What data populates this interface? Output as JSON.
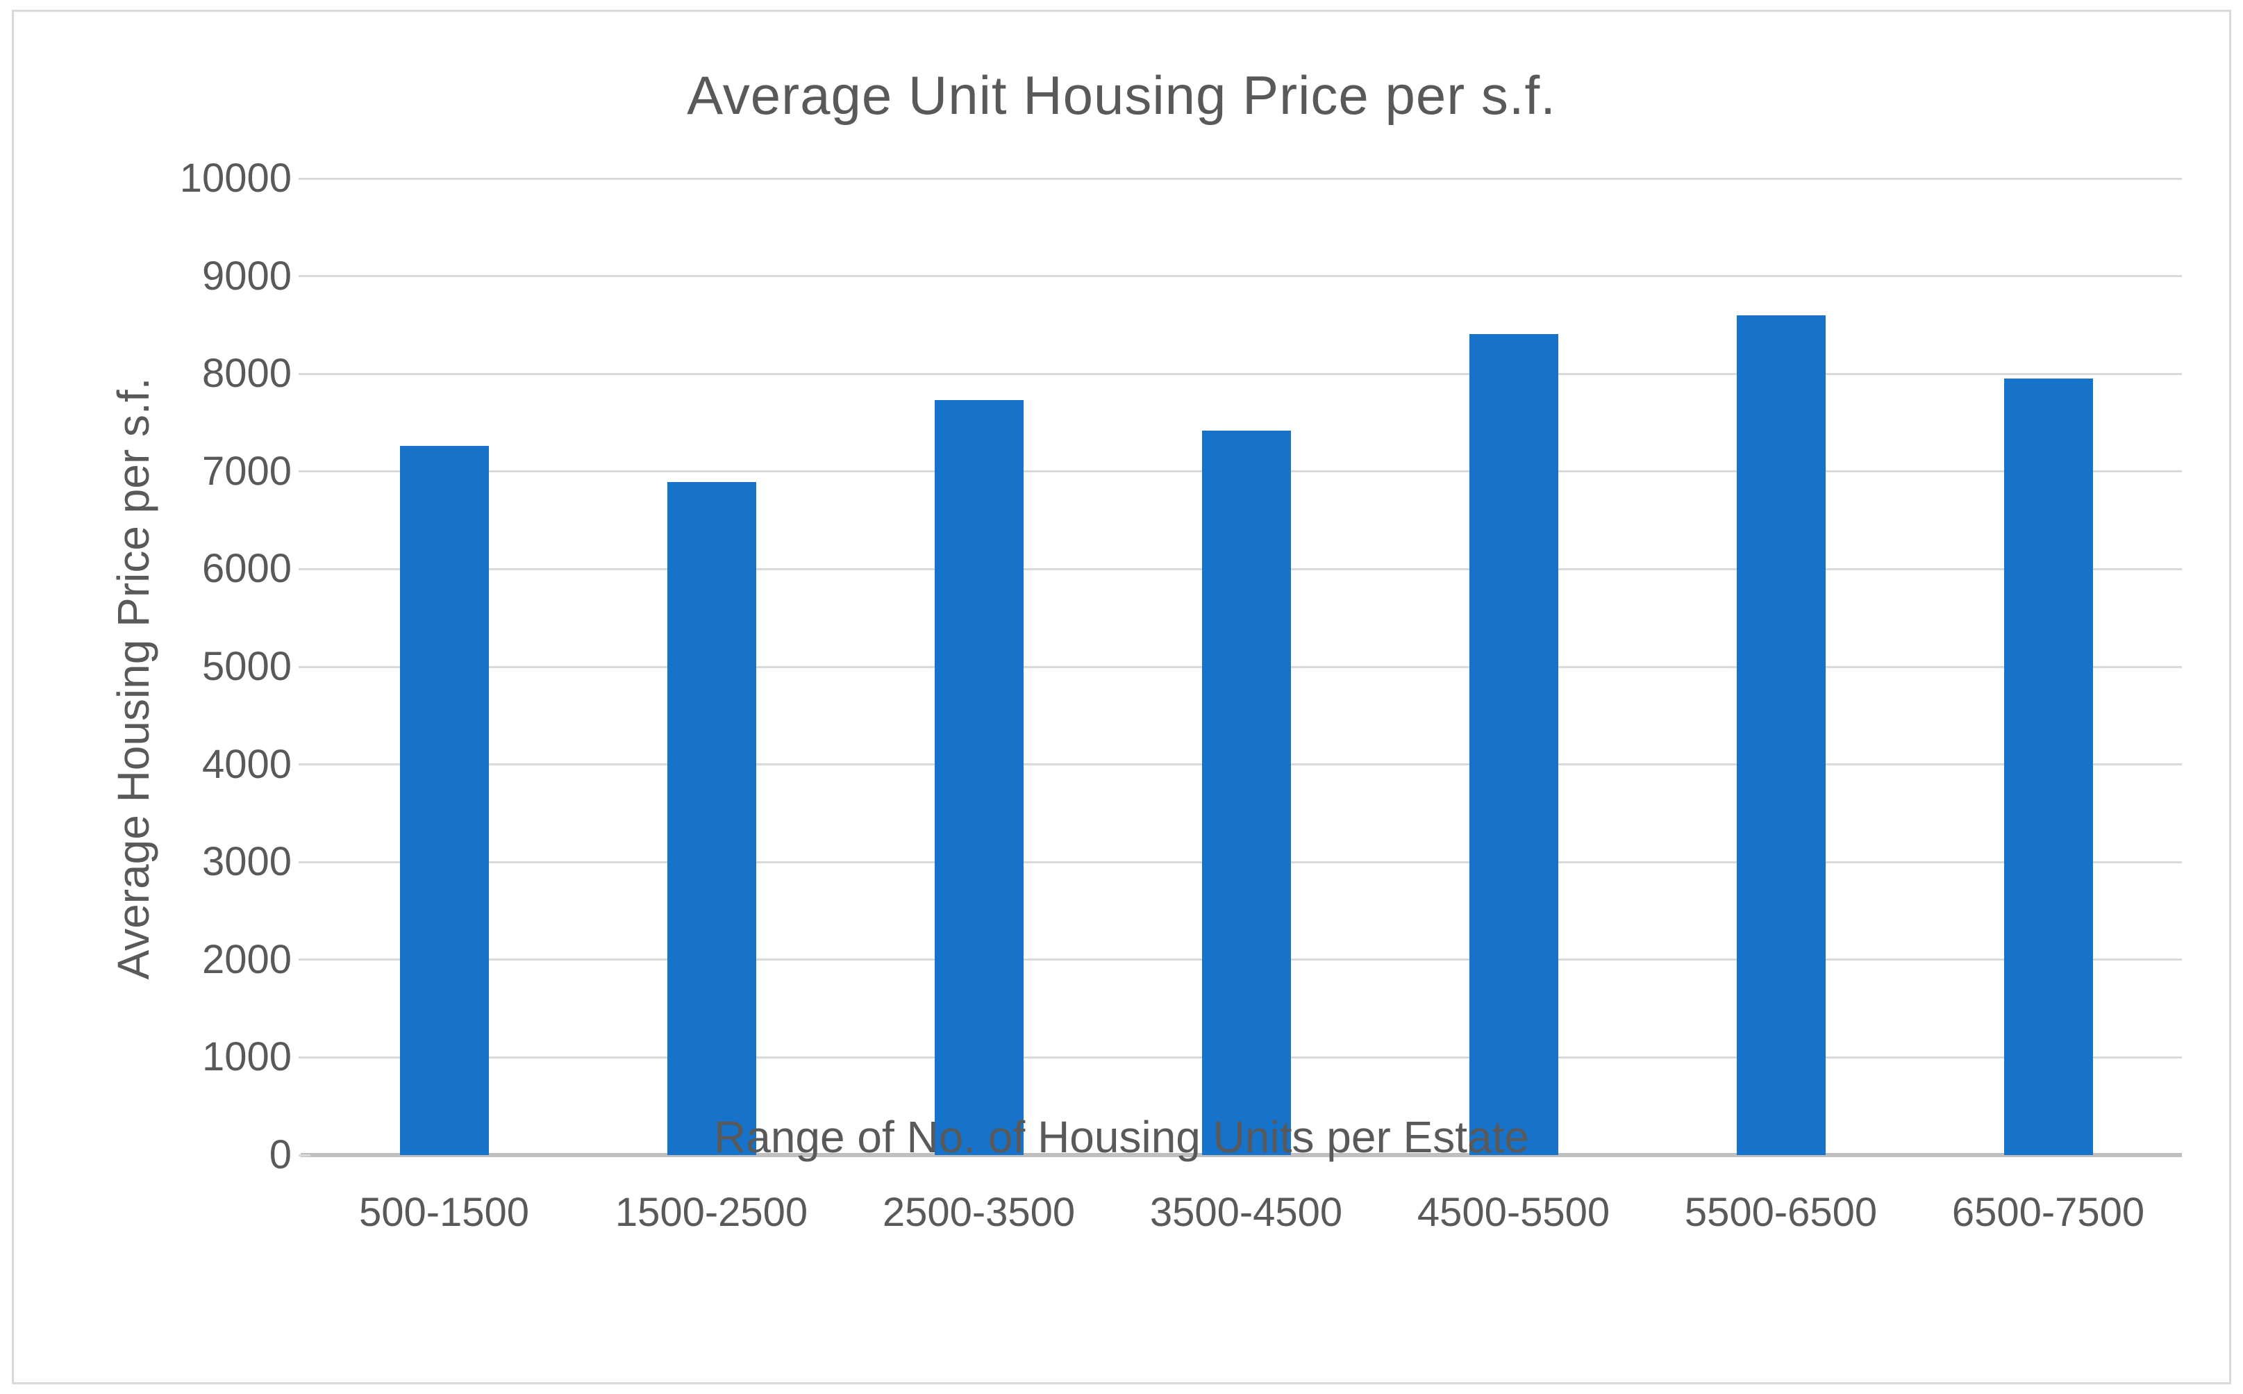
{
  "chart_data": {
    "type": "bar",
    "title": "Average Unit Housing Price per s.f.",
    "xlabel": "Range of No. of Housing Units per Estate",
    "ylabel": "Average Housing Price per s.f.",
    "categories": [
      "500-1500",
      "1500-2500",
      "2500-3500",
      "3500-4500",
      "4500-5500",
      "5500-6500",
      "6500-7500"
    ],
    "values": [
      7260,
      6890,
      7730,
      7420,
      8410,
      8600,
      7950
    ],
    "ylim": [
      0,
      10000
    ],
    "ytick_step": 1000,
    "grid": true,
    "legend": false,
    "bar_color": "#1673c9",
    "text_color": "#595959",
    "gridline_color": "#d9d9d9",
    "axis_line_color": "#bfbfbf",
    "border_color": "#d9d9d9"
  }
}
